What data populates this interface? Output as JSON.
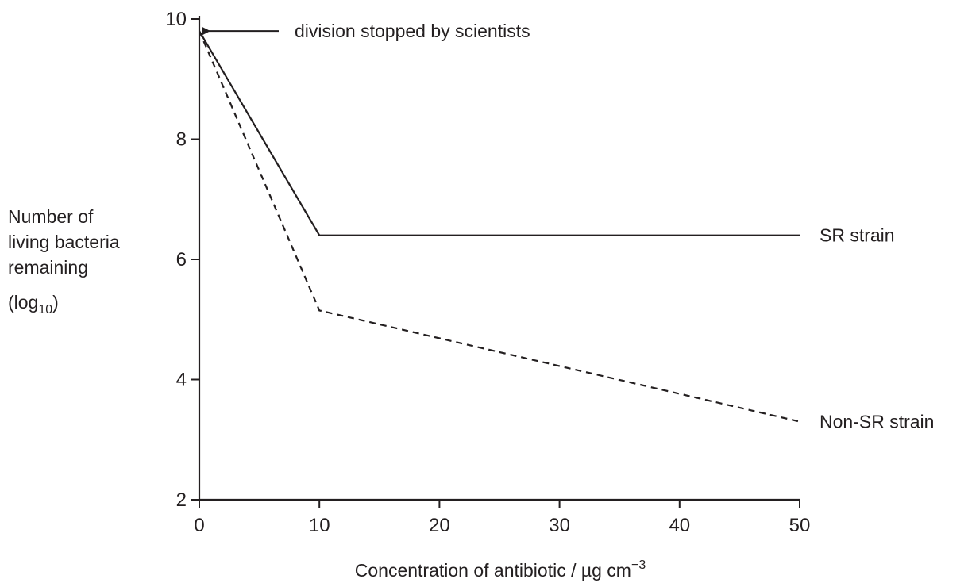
{
  "chart_data": {
    "type": "line",
    "title": "",
    "xlabel": {
      "text": "Concentration of  antibiotic / µg cm",
      "superscript": "−3"
    },
    "ylabel": {
      "lines": [
        "Number of",
        "living bacteria",
        "remaining"
      ],
      "last_line_prefix": "(log",
      "last_line_subscript": "10",
      "last_line_suffix": ")"
    },
    "xlim": [
      0,
      50
    ],
    "ylim": [
      2,
      10
    ],
    "x_ticks": [
      0,
      10,
      20,
      30,
      40,
      50
    ],
    "y_ticks": [
      2,
      4,
      6,
      8,
      10
    ],
    "grid": false,
    "series": [
      {
        "name": "SR strain",
        "style": "solid",
        "points": [
          [
            0,
            9.8
          ],
          [
            10,
            6.4
          ],
          [
            50,
            6.4
          ]
        ]
      },
      {
        "name": "Non-SR strain",
        "style": "dashed",
        "points": [
          [
            0,
            9.8
          ],
          [
            10,
            5.15
          ],
          [
            50,
            3.3
          ]
        ]
      }
    ],
    "annotations": [
      {
        "text": "division stopped by scientists",
        "x": 0,
        "y": 9.8
      }
    ]
  }
}
